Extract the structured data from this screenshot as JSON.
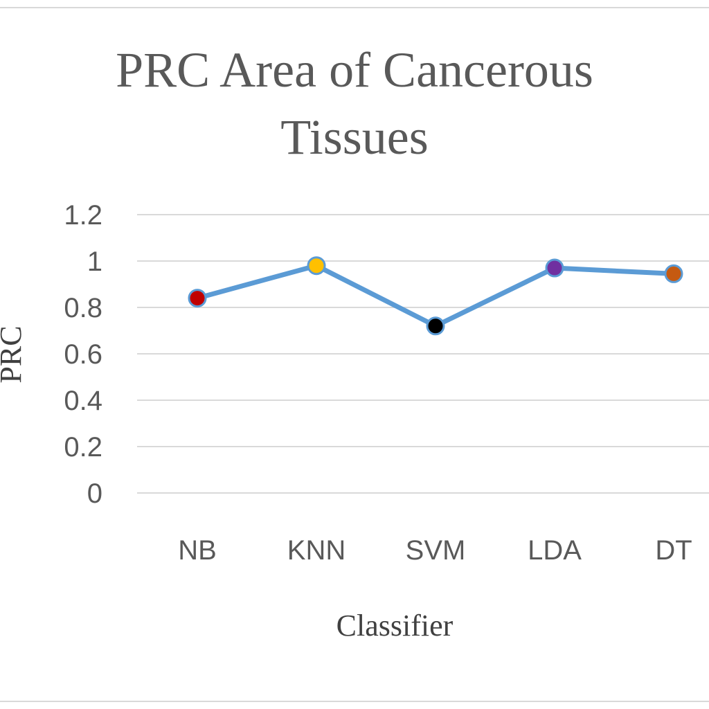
{
  "chart_data": {
    "type": "line",
    "title": "PRC Area of Cancerous Tissues",
    "title_lines": [
      "PRC Area of Cancerous",
      "Tissues"
    ],
    "xlabel": "Classifier",
    "ylabel": "PRC",
    "categories": [
      "NB",
      "KNN",
      "SVM",
      "LDA",
      "DT"
    ],
    "series": [
      {
        "values": [
          0.84,
          0.98,
          0.72,
          0.97,
          0.945
        ],
        "color": "#5b9bd5",
        "marker_colors": [
          "#c00000",
          "#ffc000",
          "#000000",
          "#7030a0",
          "#c55a11"
        ]
      }
    ],
    "yticks": [
      "0",
      "0.2",
      "0.4",
      "0.6",
      "0.8",
      "1",
      "1.2"
    ],
    "ylim": [
      0,
      1.2
    ],
    "grid": true,
    "legend": "none"
  }
}
